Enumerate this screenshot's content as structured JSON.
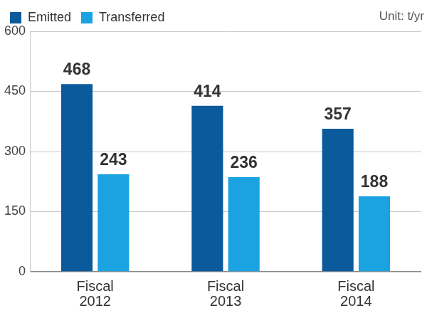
{
  "chart_data": {
    "type": "bar",
    "subtitle": "Unit: t/yr",
    "categories": [
      "Fiscal 2012",
      "Fiscal 2013",
      "Fiscal 2014"
    ],
    "series": [
      {
        "name": "Emitted",
        "color": "#0a5a9c",
        "values": [
          468,
          414,
          357
        ]
      },
      {
        "name": "Transferred",
        "color": "#1aa3e0",
        "values": [
          243,
          236,
          188
        ]
      }
    ],
    "ylim": [
      0,
      600
    ],
    "yticks": [
      0,
      150,
      300,
      450,
      600
    ],
    "grid": true,
    "legend": "top-left",
    "data_labels": true
  }
}
